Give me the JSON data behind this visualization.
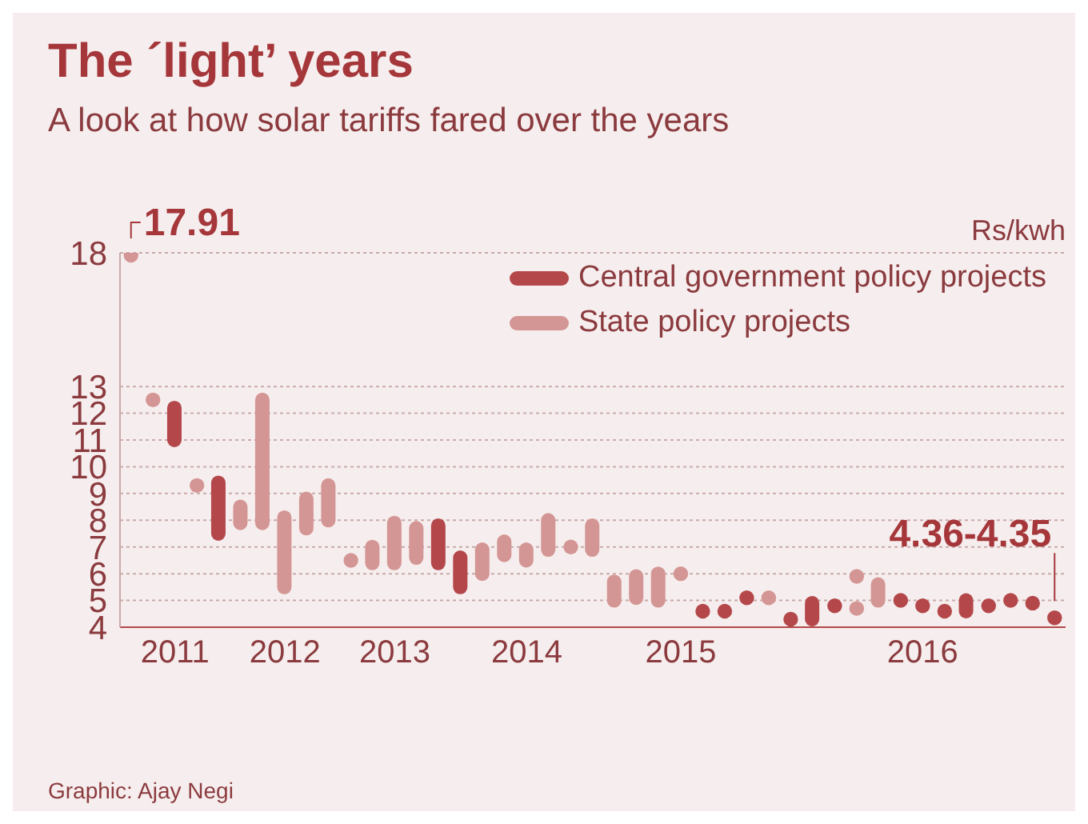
{
  "chart_data": {
    "type": "bar",
    "title": "The ´light’ years",
    "subtitle": "A look at how solar tariffs fared over the years",
    "ylabel": "Rs/kwh",
    "categories": [
      null,
      null,
      "2011",
      null,
      null,
      null,
      null,
      "2012",
      null,
      null,
      null,
      null,
      "2013",
      null,
      null,
      null,
      null,
      null,
      "2014",
      null,
      null,
      null,
      null,
      null,
      null,
      "2015",
      null,
      null,
      null,
      null,
      null,
      null,
      null,
      null,
      null,
      null,
      "2016",
      null,
      null,
      null,
      null,
      null,
      null
    ],
    "ylim": [
      4,
      18
    ],
    "yticks": [
      4,
      5,
      6,
      7,
      8,
      9,
      10,
      11,
      12,
      13,
      18
    ],
    "grid": "y",
    "legend": "top right",
    "series": [
      {
        "name": "Central government policy projects",
        "color": "#b4474a",
        "base": [
          null,
          null,
          11,
          null,
          7.5,
          null,
          null,
          null,
          null,
          null,
          null,
          null,
          null,
          null,
          6.4,
          5.5,
          null,
          null,
          null,
          null,
          null,
          null,
          null,
          null,
          null,
          null,
          null,
          null,
          null,
          null,
          null,
          4.3,
          null,
          null,
          null,
          null,
          null,
          null,
          4.6,
          null,
          null,
          null,
          null
        ],
        "values": [
          null,
          null,
          1.2,
          null,
          1.9,
          null,
          null,
          null,
          null,
          null,
          null,
          null,
          null,
          null,
          1.4,
          1.1,
          null,
          null,
          null,
          null,
          null,
          null,
          null,
          null,
          null,
          null,
          null,
          null,
          null,
          null,
          null,
          0.6,
          null,
          null,
          null,
          null,
          null,
          null,
          0.4,
          null,
          null,
          null,
          null
        ]
      },
      {
        "name": "State policy projects",
        "color": "#d49694",
        "base": [
          null,
          null,
          null,
          null,
          null,
          7.9,
          7.9,
          5.5,
          7.7,
          8,
          null,
          6.4,
          6.4,
          6.6,
          null,
          null,
          6,
          6.7,
          6.5,
          6.9,
          null,
          6.9,
          5,
          5.1,
          5,
          null,
          null,
          null,
          null,
          null,
          null,
          null,
          null,
          null,
          5,
          null,
          null,
          null,
          null,
          null,
          null,
          null,
          null
        ],
        "values": [
          null,
          null,
          null,
          null,
          null,
          0.6,
          4.6,
          2.6,
          1.1,
          1.3,
          null,
          0.6,
          1.5,
          1.1,
          null,
          null,
          0.9,
          0.5,
          0.4,
          1.1,
          null,
          0.9,
          0.7,
          0.8,
          1,
          null,
          null,
          null,
          null,
          null,
          null,
          null,
          null,
          null,
          0.6,
          null,
          null,
          null,
          null,
          null,
          null,
          null,
          null
        ]
      },
      {
        "type": "scatter",
        "color": "#b4474a",
        "values": [
          null,
          null,
          null,
          null,
          null,
          null,
          null,
          null,
          null,
          null,
          null,
          null,
          null,
          null,
          null,
          null,
          null,
          null,
          null,
          null,
          null,
          null,
          null,
          null,
          null,
          null,
          4.6,
          4.6,
          5.1,
          null,
          4.3,
          null,
          4.8,
          null,
          null,
          5,
          4.8,
          4.6,
          null,
          4.8,
          5,
          4.9,
          4.35
        ],
        "value_labels": [
          null,
          null,
          null,
          null,
          null,
          null,
          null,
          null,
          null,
          null,
          null,
          null,
          null,
          null,
          null,
          null,
          null,
          null,
          null,
          null,
          null,
          null,
          null,
          null,
          null,
          null,
          null,
          null,
          null,
          null,
          null,
          null,
          null,
          null,
          null,
          null,
          null,
          null,
          null,
          null,
          null,
          null,
          "4.36-4.35"
        ]
      },
      {
        "type": "scatter",
        "color": "#d49694",
        "values": [
          17.91,
          12.5,
          null,
          9.3,
          null,
          null,
          null,
          null,
          null,
          null,
          6.5,
          null,
          null,
          null,
          null,
          null,
          null,
          null,
          null,
          null,
          7,
          null,
          null,
          null,
          null,
          6,
          null,
          null,
          null,
          5.1,
          null,
          null,
          null,
          5.9,
          null,
          null,
          null,
          null,
          null,
          null,
          null,
          null,
          null
        ],
        "value_labels": [
          "17.91",
          null,
          null,
          null,
          null,
          null,
          null,
          null,
          null,
          null,
          null,
          null,
          null,
          null,
          null,
          null,
          null,
          null,
          null,
          null,
          null,
          null,
          null,
          null,
          null,
          null,
          null,
          null,
          null,
          null,
          null,
          null,
          null,
          null,
          null,
          null,
          null,
          null,
          null,
          null,
          null,
          null,
          null
        ]
      },
      {
        "type": "scatter",
        "color": "#d49694",
        "values": [
          null,
          null,
          null,
          null,
          null,
          null,
          null,
          null,
          null,
          null,
          null,
          null,
          null,
          null,
          null,
          null,
          null,
          null,
          null,
          null,
          null,
          null,
          null,
          null,
          null,
          null,
          null,
          null,
          null,
          null,
          null,
          null,
          null,
          4.7,
          null,
          null,
          null,
          null,
          null,
          null,
          null,
          null,
          null
        ]
      }
    ],
    "annotations": [
      "Graphic: Ajay Negi"
    ]
  }
}
